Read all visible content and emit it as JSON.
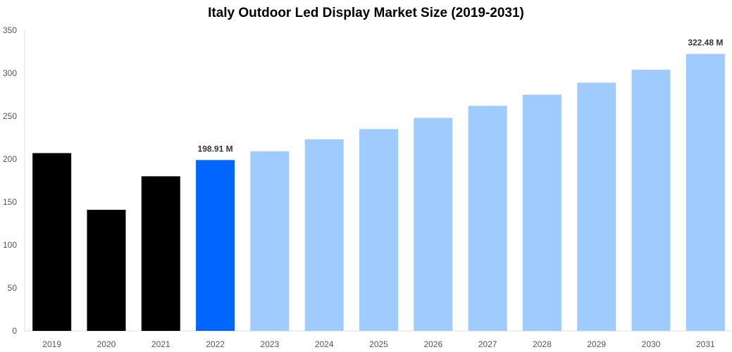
{
  "chart_data": {
    "type": "bar",
    "title": "Italy Outdoor Led Display Market Size (2019-2031)",
    "xlabel": "",
    "ylabel": "",
    "ylim": [
      0,
      350
    ],
    "yticks": [
      0,
      50,
      100,
      150,
      200,
      250,
      300,
      350
    ],
    "categories": [
      "2019",
      "2020",
      "2021",
      "2022",
      "2023",
      "2024",
      "2025",
      "2026",
      "2027",
      "2028",
      "2029",
      "2030",
      "2031"
    ],
    "values": [
      207,
      141,
      180,
      198.91,
      209,
      223,
      235,
      248,
      262,
      275,
      289,
      304,
      322.48
    ],
    "data_labels": {
      "2022": "198.91 M",
      "2031": "322.48 M"
    },
    "colors": {
      "historical": "#000000",
      "current": "#0066ff",
      "forecast": "#a0cbff"
    },
    "grid": false
  }
}
